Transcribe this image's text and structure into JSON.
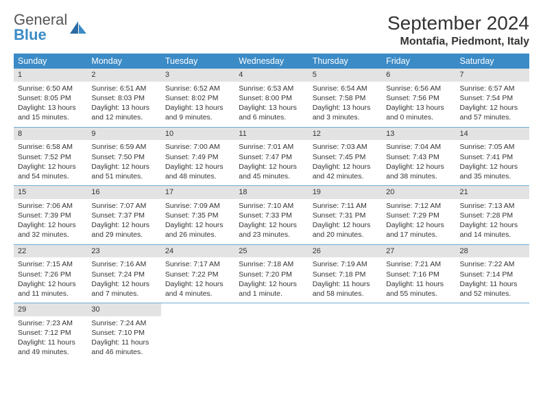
{
  "logo": {
    "text1": "General",
    "text2": "Blue"
  },
  "title": "September 2024",
  "location": "Montafia, Piedmont, Italy",
  "colors": {
    "header_bg": "#3b8bc6",
    "row_border": "#6fa9d2",
    "daynum_bg": "#e3e3e3",
    "text": "#333333",
    "bg": "#ffffff"
  },
  "weekdays": [
    "Sunday",
    "Monday",
    "Tuesday",
    "Wednesday",
    "Thursday",
    "Friday",
    "Saturday"
  ],
  "weeks": [
    [
      {
        "n": "1",
        "sr": "Sunrise: 6:50 AM",
        "ss": "Sunset: 8:05 PM",
        "dl": "Daylight: 13 hours and 15 minutes."
      },
      {
        "n": "2",
        "sr": "Sunrise: 6:51 AM",
        "ss": "Sunset: 8:03 PM",
        "dl": "Daylight: 13 hours and 12 minutes."
      },
      {
        "n": "3",
        "sr": "Sunrise: 6:52 AM",
        "ss": "Sunset: 8:02 PM",
        "dl": "Daylight: 13 hours and 9 minutes."
      },
      {
        "n": "4",
        "sr": "Sunrise: 6:53 AM",
        "ss": "Sunset: 8:00 PM",
        "dl": "Daylight: 13 hours and 6 minutes."
      },
      {
        "n": "5",
        "sr": "Sunrise: 6:54 AM",
        "ss": "Sunset: 7:58 PM",
        "dl": "Daylight: 13 hours and 3 minutes."
      },
      {
        "n": "6",
        "sr": "Sunrise: 6:56 AM",
        "ss": "Sunset: 7:56 PM",
        "dl": "Daylight: 13 hours and 0 minutes."
      },
      {
        "n": "7",
        "sr": "Sunrise: 6:57 AM",
        "ss": "Sunset: 7:54 PM",
        "dl": "Daylight: 12 hours and 57 minutes."
      }
    ],
    [
      {
        "n": "8",
        "sr": "Sunrise: 6:58 AM",
        "ss": "Sunset: 7:52 PM",
        "dl": "Daylight: 12 hours and 54 minutes."
      },
      {
        "n": "9",
        "sr": "Sunrise: 6:59 AM",
        "ss": "Sunset: 7:50 PM",
        "dl": "Daylight: 12 hours and 51 minutes."
      },
      {
        "n": "10",
        "sr": "Sunrise: 7:00 AM",
        "ss": "Sunset: 7:49 PM",
        "dl": "Daylight: 12 hours and 48 minutes."
      },
      {
        "n": "11",
        "sr": "Sunrise: 7:01 AM",
        "ss": "Sunset: 7:47 PM",
        "dl": "Daylight: 12 hours and 45 minutes."
      },
      {
        "n": "12",
        "sr": "Sunrise: 7:03 AM",
        "ss": "Sunset: 7:45 PM",
        "dl": "Daylight: 12 hours and 42 minutes."
      },
      {
        "n": "13",
        "sr": "Sunrise: 7:04 AM",
        "ss": "Sunset: 7:43 PM",
        "dl": "Daylight: 12 hours and 38 minutes."
      },
      {
        "n": "14",
        "sr": "Sunrise: 7:05 AM",
        "ss": "Sunset: 7:41 PM",
        "dl": "Daylight: 12 hours and 35 minutes."
      }
    ],
    [
      {
        "n": "15",
        "sr": "Sunrise: 7:06 AM",
        "ss": "Sunset: 7:39 PM",
        "dl": "Daylight: 12 hours and 32 minutes."
      },
      {
        "n": "16",
        "sr": "Sunrise: 7:07 AM",
        "ss": "Sunset: 7:37 PM",
        "dl": "Daylight: 12 hours and 29 minutes."
      },
      {
        "n": "17",
        "sr": "Sunrise: 7:09 AM",
        "ss": "Sunset: 7:35 PM",
        "dl": "Daylight: 12 hours and 26 minutes."
      },
      {
        "n": "18",
        "sr": "Sunrise: 7:10 AM",
        "ss": "Sunset: 7:33 PM",
        "dl": "Daylight: 12 hours and 23 minutes."
      },
      {
        "n": "19",
        "sr": "Sunrise: 7:11 AM",
        "ss": "Sunset: 7:31 PM",
        "dl": "Daylight: 12 hours and 20 minutes."
      },
      {
        "n": "20",
        "sr": "Sunrise: 7:12 AM",
        "ss": "Sunset: 7:29 PM",
        "dl": "Daylight: 12 hours and 17 minutes."
      },
      {
        "n": "21",
        "sr": "Sunrise: 7:13 AM",
        "ss": "Sunset: 7:28 PM",
        "dl": "Daylight: 12 hours and 14 minutes."
      }
    ],
    [
      {
        "n": "22",
        "sr": "Sunrise: 7:15 AM",
        "ss": "Sunset: 7:26 PM",
        "dl": "Daylight: 12 hours and 11 minutes."
      },
      {
        "n": "23",
        "sr": "Sunrise: 7:16 AM",
        "ss": "Sunset: 7:24 PM",
        "dl": "Daylight: 12 hours and 7 minutes."
      },
      {
        "n": "24",
        "sr": "Sunrise: 7:17 AM",
        "ss": "Sunset: 7:22 PM",
        "dl": "Daylight: 12 hours and 4 minutes."
      },
      {
        "n": "25",
        "sr": "Sunrise: 7:18 AM",
        "ss": "Sunset: 7:20 PM",
        "dl": "Daylight: 12 hours and 1 minute."
      },
      {
        "n": "26",
        "sr": "Sunrise: 7:19 AM",
        "ss": "Sunset: 7:18 PM",
        "dl": "Daylight: 11 hours and 58 minutes."
      },
      {
        "n": "27",
        "sr": "Sunrise: 7:21 AM",
        "ss": "Sunset: 7:16 PM",
        "dl": "Daylight: 11 hours and 55 minutes."
      },
      {
        "n": "28",
        "sr": "Sunrise: 7:22 AM",
        "ss": "Sunset: 7:14 PM",
        "dl": "Daylight: 11 hours and 52 minutes."
      }
    ],
    [
      {
        "n": "29",
        "sr": "Sunrise: 7:23 AM",
        "ss": "Sunset: 7:12 PM",
        "dl": "Daylight: 11 hours and 49 minutes."
      },
      {
        "n": "30",
        "sr": "Sunrise: 7:24 AM",
        "ss": "Sunset: 7:10 PM",
        "dl": "Daylight: 11 hours and 46 minutes."
      },
      null,
      null,
      null,
      null,
      null
    ]
  ]
}
